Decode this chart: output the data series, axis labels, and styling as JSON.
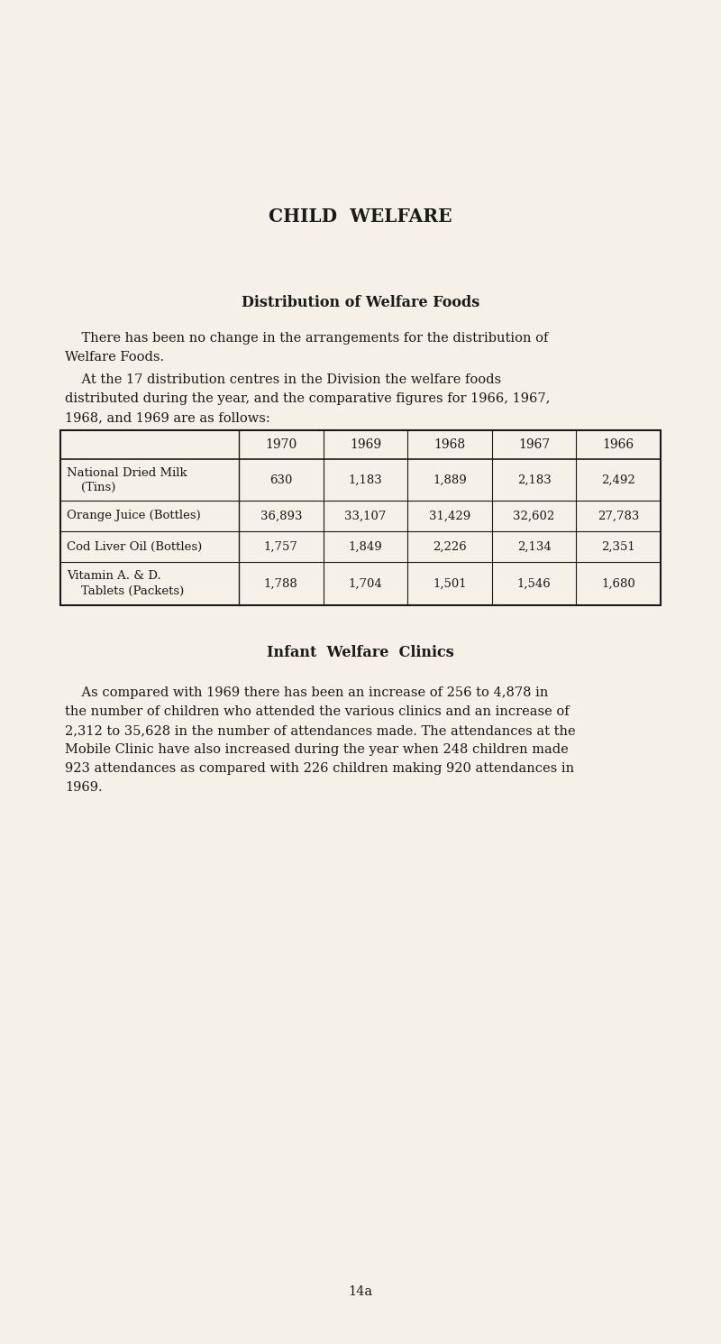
{
  "bg_color": "#f5f0e8",
  "title": "CHILD  WELFARE",
  "section1_heading": "Distribution of Welfare Foods",
  "section1_para1_line1": "    There has been no change in the arrangements for the distribution of",
  "section1_para1_line2": "Welfare Foods.",
  "section1_para2_line1": "    At the 17 distribution centres in the Division the welfare foods",
  "section1_para2_line2": "distributed during the year, and the comparative figures for 1966, 1967,",
  "section1_para2_line3": "1968, and 1969 are as follows:",
  "table_years": [
    "1970",
    "1969",
    "1968",
    "1967",
    "1966"
  ],
  "table_rows": [
    {
      "label1": "National Dried Milk",
      "label2": "(Tins)",
      "values": [
        "630",
        "1,183",
        "1,889",
        "2,183",
        "2,492"
      ]
    },
    {
      "label1": "Orange Juice (Bottles)",
      "label2": "",
      "values": [
        "36,893",
        "33,107",
        "31,429",
        "32,602",
        "27,783"
      ]
    },
    {
      "label1": "Cod Liver Oil (Bottles)",
      "label2": "",
      "values": [
        "1,757",
        "1,849",
        "2,226",
        "2,134",
        "2,351"
      ]
    },
    {
      "label1": "Vitamin A. & D.",
      "label2": "Tablets (Packets)",
      "values": [
        "1,788",
        "1,704",
        "1,501",
        "1,546",
        "1,680"
      ]
    }
  ],
  "section2_heading": "Infant  Welfare  Clinics",
  "section2_para_line1": "    As compared with 1969 there has been an increase of 256 to 4,878 in",
  "section2_para_line2": "the number of children who attended the various clinics and an increase of",
  "section2_para_line3": "2,312 to 35,628 in the number of attendances made. The attendances at the",
  "section2_para_line4": "Mobile Clinic have also increased during the year when 248 children made",
  "section2_para_line5": "923 attendances as compared with 226 children making 920 attendances in",
  "section2_para_line6": "1969.",
  "page_number": "14a",
  "text_color": "#1a1a1a",
  "font_size_body": 10.5,
  "font_size_heading": 11.5,
  "font_size_title": 14.5
}
